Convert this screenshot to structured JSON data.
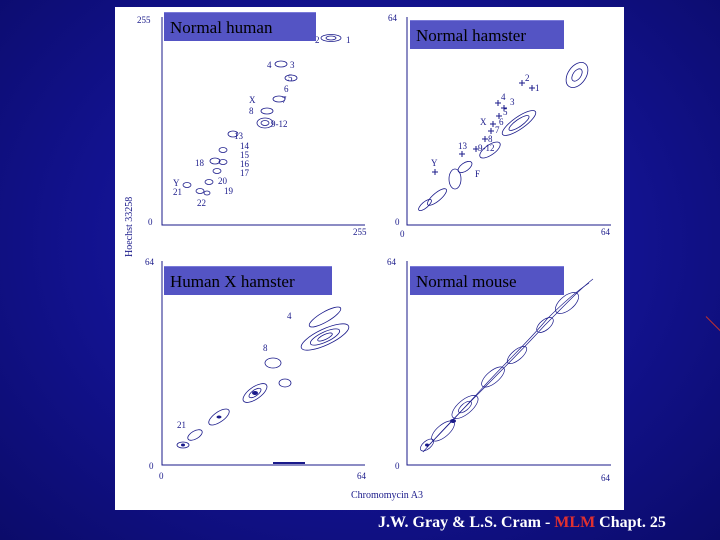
{
  "panels": {
    "top_left": {
      "title": "Normal human"
    },
    "top_right": {
      "title": "Normal hamster"
    },
    "bottom_left": {
      "title": "Human X hamster"
    },
    "bottom_right": {
      "title": "Normal mouse"
    }
  },
  "axes": {
    "y_label": "Hoechst 33258",
    "x_label": "Chromomycin A3",
    "tl": {
      "y_max": "255",
      "origin": "0",
      "x_max": "255"
    },
    "tr": {
      "y_max": "64",
      "origin": "0",
      "x_max": "64"
    },
    "bl": {
      "y_max": "64",
      "origin": "0",
      "x_max": "64"
    },
    "br": {
      "y_max": "64",
      "origin": "0",
      "x_max": "64"
    }
  },
  "chromosome_labels": {
    "human": [
      "2",
      "1",
      "4",
      "3",
      "5",
      "6",
      "X",
      "7",
      "8",
      "9-12",
      "13",
      "14",
      "15",
      "16",
      "17",
      "18",
      "Y",
      "20",
      "21",
      "19",
      "22"
    ],
    "hamster": [
      "2",
      "1",
      "4",
      "3",
      "5",
      "X",
      "6",
      "7",
      "8",
      "13",
      "9-12",
      "Y",
      "F"
    ],
    "hybrid": [
      "4",
      "8",
      "21"
    ]
  },
  "citation": {
    "before": "J.W. Gray & L.S. Cram - ",
    "highlight": "MLM",
    "after": " Chapt. 25"
  },
  "colors": {
    "background": "#12128e",
    "panel_title_bg": "#5454c4",
    "highlight": "#e03030",
    "ink": "#1a1a8a"
  }
}
